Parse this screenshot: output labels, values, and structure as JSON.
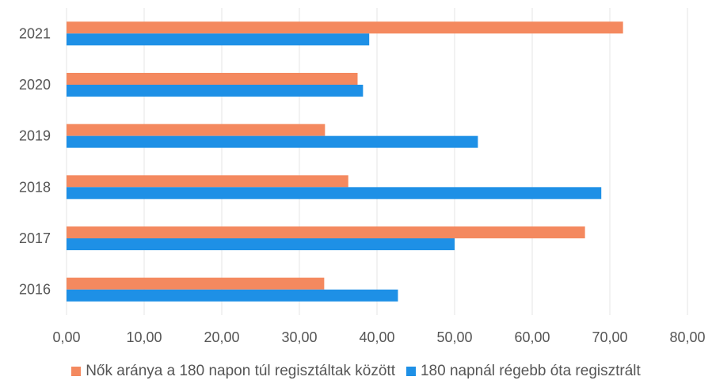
{
  "chart_data": {
    "type": "bar",
    "orientation": "horizontal",
    "categories": [
      "2016",
      "2017",
      "2018",
      "2019",
      "2020",
      "2021"
    ],
    "series": [
      {
        "name": "Nők aránya a 180 napon túl regisztáltak között",
        "color": "#f4895f",
        "values": [
          33.2,
          66.8,
          36.3,
          33.3,
          37.5,
          71.7
        ]
      },
      {
        "name": "180 napnál régebb óta regisztrált",
        "color": "#1e90e6",
        "values": [
          42.7,
          50.0,
          68.9,
          53.0,
          38.2,
          39.0
        ]
      }
    ],
    "xticks": [
      "0,00",
      "10,00",
      "20,00",
      "30,00",
      "40,00",
      "50,00",
      "60,00",
      "70,00",
      "80,00"
    ],
    "xlim": [
      0,
      80
    ],
    "grid": true,
    "legend_position": "bottom"
  }
}
